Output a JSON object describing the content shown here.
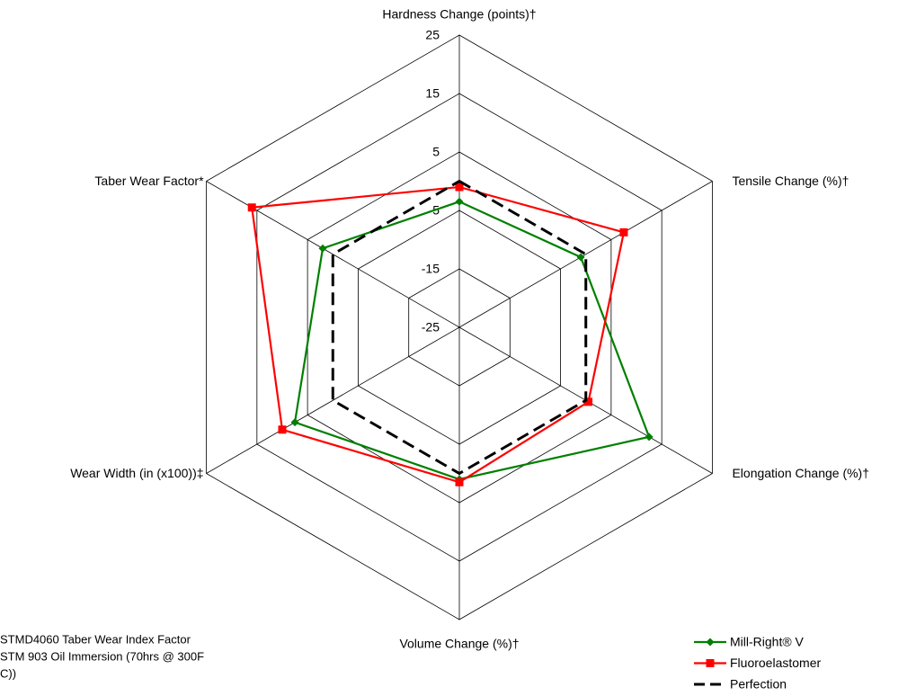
{
  "chart_data": {
    "type": "radar",
    "categories": [
      "Hardness Change (points)†",
      "Tensile Change (%)†",
      "Elongation Change (%)†",
      "Volume Change (%)†",
      "Wear Width (in (x100))‡",
      "Taber Wear Factor*"
    ],
    "series": [
      {
        "name": "Mill-Right® V",
        "color": "#008000",
        "marker": "diamond",
        "values": [
          -3.5,
          -1,
          12.5,
          1,
          7.5,
          2
        ]
      },
      {
        "name": "Fluoroelastomer",
        "color": "#ff0000",
        "marker": "square",
        "values": [
          -1,
          7.5,
          0.5,
          1.5,
          10,
          16
        ]
      },
      {
        "name": "Perfection",
        "color": "#000000",
        "dashed": true,
        "values": [
          0,
          0,
          0,
          0,
          0,
          0
        ]
      }
    ],
    "rlim": [
      -25,
      25
    ],
    "rticks": [
      -25,
      -15,
      -5,
      5,
      15,
      25
    ],
    "grid": true,
    "notes": [
      "STMD4060 Taber Wear Index Factor",
      "STM 903 Oil Immersion (70hrs @ 300F",
      "C))"
    ]
  }
}
